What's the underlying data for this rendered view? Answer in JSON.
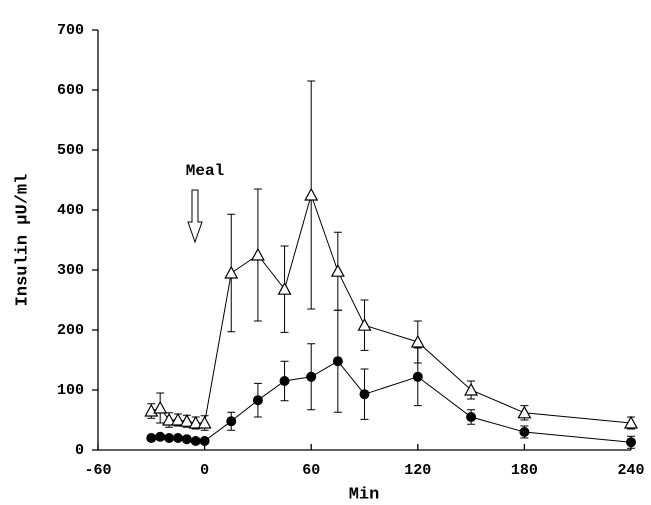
{
  "chart_data": {
    "type": "line",
    "x_label": "Min",
    "y_label": "Insulin  µU/ml",
    "annotation": "Meal",
    "x": [
      -30,
      -25,
      -20,
      -15,
      -10,
      -5,
      0,
      15,
      30,
      45,
      60,
      75,
      90,
      120,
      150,
      180,
      240
    ],
    "series": [
      {
        "marker": "triangle",
        "color": "#000000",
        "values": [
          65,
          70,
          50,
          50,
          48,
          45,
          45,
          295,
          325,
          268,
          425,
          298,
          208,
          180,
          100,
          62,
          45
        ],
        "errors": [
          12,
          25,
          12,
          10,
          10,
          10,
          12,
          98,
          110,
          72,
          190,
          65,
          42,
          35,
          15,
          12,
          10
        ]
      },
      {
        "marker": "circle",
        "color": "#000000",
        "values": [
          20,
          22,
          20,
          20,
          18,
          15,
          15,
          48,
          83,
          115,
          122,
          148,
          93,
          122,
          55,
          30,
          13
        ],
        "errors": [
          4,
          4,
          4,
          4,
          4,
          4,
          4,
          15,
          28,
          33,
          55,
          85,
          42,
          48,
          12,
          10,
          10
        ]
      }
    ],
    "xlim": [
      -60,
      240
    ],
    "xticks": [
      -60,
      0,
      60,
      120,
      180,
      240
    ],
    "ylim": [
      0,
      700
    ],
    "yticks": [
      0,
      100,
      200,
      300,
      400,
      500,
      600,
      700
    ]
  }
}
